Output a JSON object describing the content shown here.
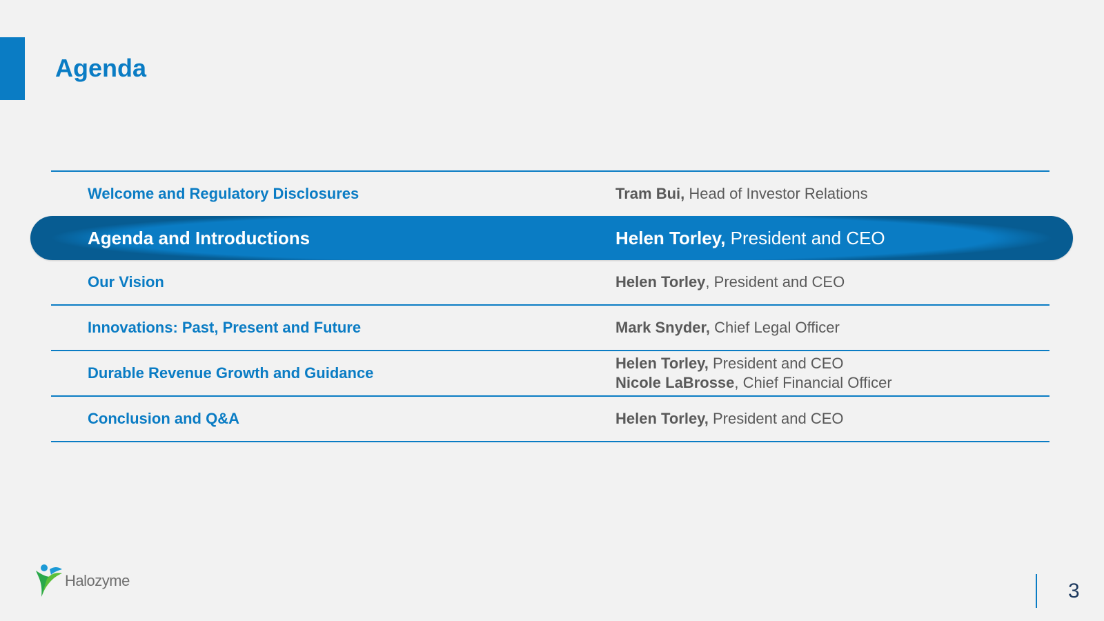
{
  "slide": {
    "title": "Agenda",
    "page_number": "3",
    "accent_color": "#0a7cc4"
  },
  "agenda": [
    {
      "topic": "Welcome and Regulatory Disclosures",
      "presenters": [
        {
          "name": "Tram Bui,",
          "role": " Head of Investor Relations"
        }
      ]
    },
    {
      "topic": "Agenda and Introductions",
      "highlighted": true,
      "presenters": [
        {
          "name": "Helen Torley,",
          "role": " President and CEO"
        }
      ]
    },
    {
      "topic": "Our Vision",
      "presenters": [
        {
          "name": "Helen Torley",
          "role": ", President and CEO"
        }
      ]
    },
    {
      "topic": "Innovations: Past, Present and Future",
      "presenters": [
        {
          "name": "Mark Snyder,",
          "role": " Chief Legal Officer"
        }
      ]
    },
    {
      "topic": "Durable Revenue Growth and Guidance",
      "presenters": [
        {
          "name": "Helen Torley,",
          "role": " President and CEO"
        },
        {
          "name": "Nicole LaBrosse",
          "role": ", Chief Financial Officer"
        }
      ]
    },
    {
      "topic": "Conclusion and Q&A",
      "presenters": [
        {
          "name": "Helen Torley,",
          "role": " President and CEO"
        }
      ]
    }
  ],
  "logo": {
    "text": "Halozyme",
    "icon": "halozyme-figure-icon"
  }
}
